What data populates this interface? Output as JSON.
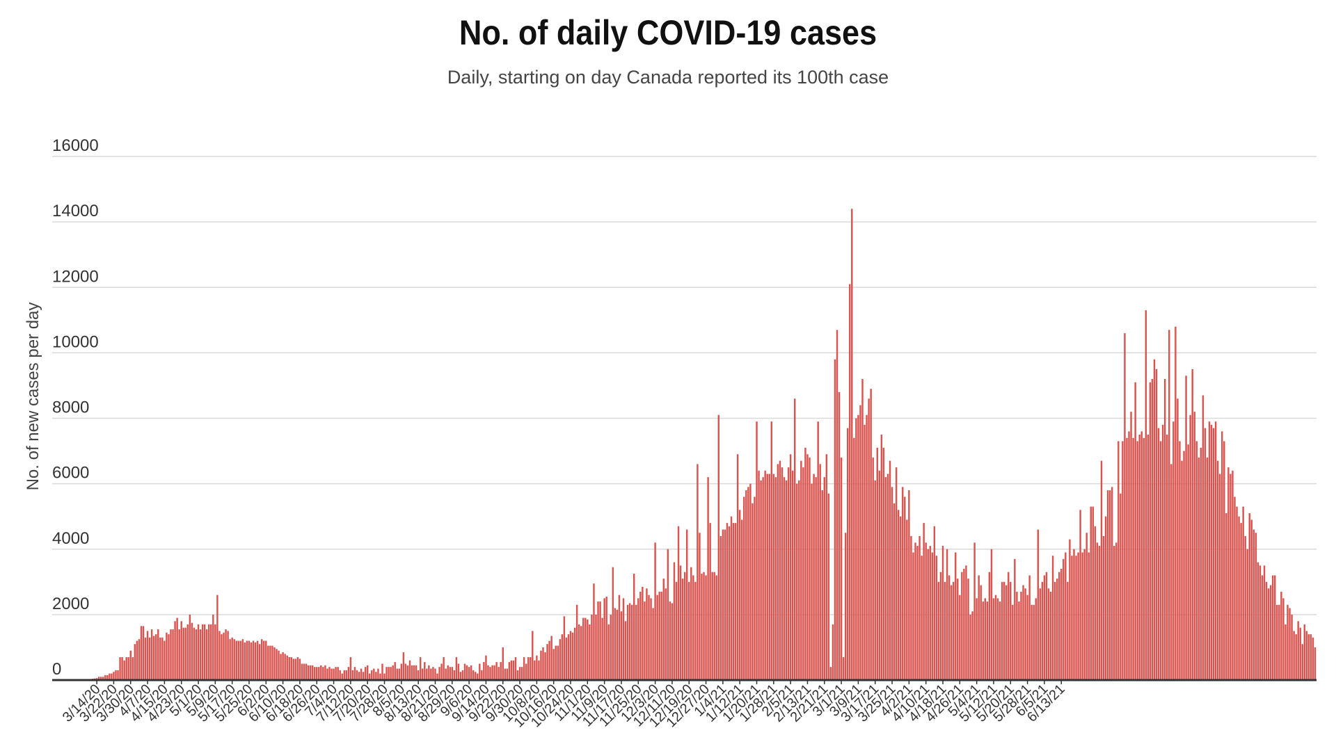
{
  "chart_data": {
    "type": "bar",
    "title": "No. of daily COVID-19 cases",
    "subtitle": "Daily, starting on day Canada reported its 100th case",
    "ylabel": "No. of new cases per day",
    "xlabel": "",
    "ylim": [
      0,
      16000
    ],
    "yticks": [
      0,
      2000,
      4000,
      6000,
      8000,
      10000,
      12000,
      14000,
      16000
    ],
    "bar_color": "#d9534f",
    "grid": true,
    "x_start": "3/11/20",
    "x_end": "6/15/21",
    "x_tick_labels": [
      "3/14/20",
      "3/22/20",
      "3/30/20",
      "4/7/20",
      "4/15/20",
      "4/23/20",
      "5/1/20",
      "5/9/20",
      "5/17/20",
      "5/25/20",
      "6/2/20",
      "6/10/20",
      "6/18/20",
      "6/26/20",
      "7/4/20",
      "7/12/20",
      "7/20/20",
      "7/28/20",
      "8/5/20",
      "8/13/20",
      "8/21/20",
      "8/29/20",
      "9/6/20",
      "9/14/20",
      "9/22/20",
      "9/30/20",
      "10/8/20",
      "10/16/20",
      "10/24/20",
      "11/1/20",
      "11/9/20",
      "11/17/20",
      "11/25/20",
      "12/3/20",
      "12/11/20",
      "12/19/20",
      "12/27/20",
      "1/4/21",
      "1/12/21",
      "1/20/21",
      "1/28/21",
      "2/5/21",
      "2/13/21",
      "2/21/21",
      "3/1/21",
      "3/9/21",
      "3/17/21",
      "3/25/21",
      "4/2/21",
      "4/10/21",
      "4/18/21",
      "4/26/21",
      "5/4/21",
      "5/12/21",
      "5/20/21",
      "5/28/21",
      "6/5/21",
      "6/13/21"
    ],
    "values": [
      30,
      40,
      50,
      60,
      100,
      100,
      100,
      150,
      150,
      200,
      200,
      250,
      300,
      300,
      700,
      700,
      600,
      700,
      700,
      900,
      700,
      1100,
      1200,
      1250,
      1650,
      1650,
      1300,
      1500,
      1300,
      1550,
      1350,
      1400,
      1550,
      1300,
      1300,
      1200,
      1450,
      1400,
      1550,
      1550,
      1800,
      1900,
      1550,
      1800,
      1600,
      1600,
      1700,
      2000,
      1750,
      1600,
      1550,
      1700,
      1550,
      1700,
      1700,
      1550,
      1700,
      1700,
      2000,
      1700,
      2600,
      1500,
      1400,
      1450,
      1550,
      1500,
      1250,
      1300,
      1250,
      1200,
      1200,
      1200,
      1250,
      1150,
      1200,
      1200,
      1150,
      1200,
      1150,
      1200,
      1100,
      1250,
      1200,
      1200,
      1050,
      1050,
      1050,
      1000,
      950,
      900,
      800,
      850,
      800,
      750,
      700,
      700,
      650,
      650,
      700,
      650,
      500,
      500,
      500,
      450,
      450,
      450,
      400,
      400,
      400,
      450,
      400,
      450,
      350,
      400,
      350,
      350,
      400,
      400,
      300,
      200,
      300,
      300,
      400,
      700,
      300,
      400,
      300,
      250,
      350,
      250,
      400,
      450,
      200,
      300,
      350,
      250,
      350,
      200,
      500,
      200,
      400,
      400,
      400,
      450,
      550,
      350,
      350,
      500,
      850,
      500,
      450,
      600,
      450,
      450,
      450,
      300,
      700,
      350,
      550,
      350,
      450,
      350,
      400,
      350,
      200,
      400,
      500,
      700,
      350,
      450,
      400,
      400,
      300,
      700,
      500,
      250,
      300,
      500,
      450,
      400,
      450,
      300,
      250,
      200,
      500,
      300,
      550,
      750,
      450,
      400,
      450,
      450,
      550,
      400,
      550,
      1000,
      350,
      350,
      550,
      600,
      600,
      700,
      300,
      400,
      400,
      700,
      500,
      700,
      700,
      1500,
      600,
      750,
      600,
      900,
      1000,
      850,
      1100,
      1200,
      1350,
      950,
      1050,
      1050,
      1250,
      1400,
      1950,
      1300,
      1400,
      1500,
      1450,
      1600,
      2300,
      1700,
      1650,
      1900,
      1900,
      1850,
      1700,
      2000,
      2950,
      2000,
      2400,
      2400,
      1900,
      2500,
      2550,
      1700,
      2000,
      3450,
      2200,
      2150,
      2600,
      2100,
      2500,
      1800,
      2300,
      2350,
      2300,
      3250,
      2300,
      2500,
      2700,
      2850,
      2400,
      2800,
      2600,
      2500,
      2200,
      4200,
      2600,
      2700,
      2700,
      3100,
      2800,
      4000,
      2400,
      2350,
      3600,
      3000,
      4700,
      3500,
      3100,
      3300,
      4600,
      3000,
      3450,
      3200,
      3000,
      6600,
      4500,
      3250,
      3300,
      3200,
      6200,
      4800,
      3300,
      3300,
      3200,
      8100,
      4400,
      4600,
      4600,
      4800,
      4700,
      5000,
      4800,
      4800,
      6900,
      5200,
      4900,
      5600,
      5800,
      5900,
      6000,
      5400,
      5600,
      7900,
      6400,
      6100,
      6200,
      6400,
      6300,
      6300,
      7900,
      6300,
      6200,
      6600,
      6700,
      6500,
      6200,
      6100,
      6500,
      6900,
      6400,
      8600,
      6000,
      6100,
      6700,
      6500,
      7100,
      6900,
      6800,
      6000,
      6300,
      6200,
      7900,
      6600,
      5800,
      6200,
      6900,
      5700,
      400,
      1700,
      9800,
      10700,
      8800,
      6800,
      700,
      4500,
      7700,
      12100,
      14400,
      7400,
      8000,
      8100,
      8400,
      9200,
      7800,
      8100,
      8600,
      8900,
      6800,
      6100,
      7100,
      6400,
      7500,
      7100,
      6200,
      6300,
      6700,
      5900,
      5400,
      6500,
      5200,
      5000,
      5900,
      5600,
      4900,
      5800,
      4400,
      3900,
      4200,
      4100,
      4400,
      3800,
      4800,
      4200,
      4000,
      4100,
      3900,
      4700,
      3800,
      3000,
      3300,
      4100,
      3000,
      4000,
      3200,
      2900,
      3000,
      3900,
      3100,
      2600,
      3300,
      3400,
      3500,
      3100,
      2000,
      2100,
      4200,
      2500,
      3200,
      2900,
      2400,
      2500,
      2400,
      3300,
      4000,
      2500,
      2600,
      2500,
      2400,
      3000,
      3000,
      2900,
      3300,
      3000,
      2300,
      3700,
      2700,
      2400,
      2700,
      2900,
      2800,
      2600,
      3200,
      2300,
      2300,
      2500,
      4600,
      2800,
      3000,
      3200,
      3300,
      2800,
      2700,
      3800,
      3000,
      3100,
      3300,
      3400,
      3700,
      3900,
      3000,
      4300,
      3800,
      4000,
      3800,
      3900,
      5200,
      3900,
      4000,
      4500,
      3900,
      5300,
      5300,
      4700,
      4200,
      4100,
      6700,
      4400,
      5000,
      5800,
      5800,
      5900,
      4100,
      4200,
      7300,
      5700,
      7300,
      10600,
      7400,
      7600,
      8200,
      7400,
      9100,
      7300,
      7500,
      7600,
      7400,
      11300,
      7500,
      9100,
      9200,
      9800,
      9500,
      7700,
      7300,
      7800,
      9200,
      7500,
      10700,
      6600,
      7900,
      10800,
      8600,
      7300,
      6700,
      7000,
      9300,
      7200,
      8100,
      9500,
      8200,
      7300,
      6800,
      7100,
      8700,
      7700,
      6800,
      7900,
      7800,
      7700,
      7900,
      6700,
      6300,
      7600,
      7300,
      5100,
      6500,
      6300,
      6400,
      5600,
      5300,
      5000,
      4800,
      5300,
      4400,
      4000,
      5100,
      4900,
      4600,
      4500,
      3600,
      3500,
      3200,
      3500,
      3000,
      2800,
      2900,
      3200,
      3200,
      2300,
      2300,
      2700,
      2500,
      1700,
      2300,
      2200,
      2000,
      1500,
      1400,
      1800,
      1600,
      1100,
      1700,
      1500,
      1400,
      1400,
      1300,
      1000
    ]
  }
}
